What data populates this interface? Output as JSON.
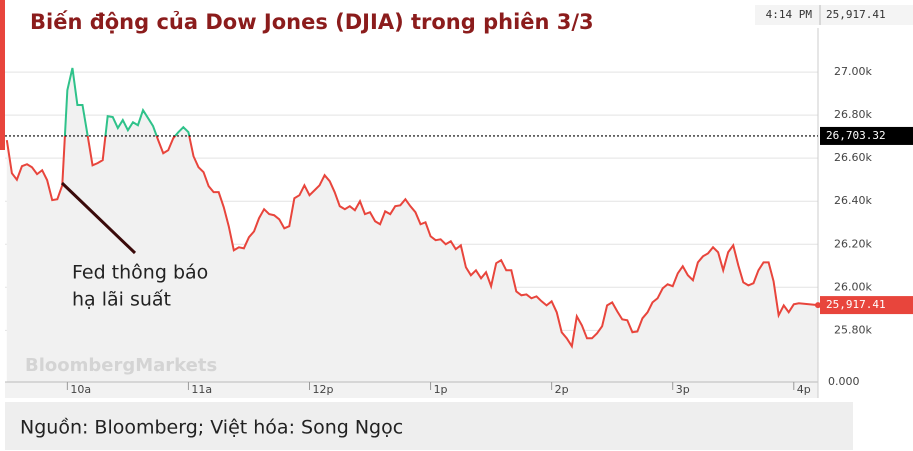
{
  "chart_data": {
    "type": "line",
    "title": "Biến động của Dow Jones (DJIA) trong phiên 3/3",
    "header": {
      "time": "4:14 PM",
      "price": "25,917.41"
    },
    "watermark": "BloombergMarkets",
    "annotation": [
      "Fed thông báo",
      "hạ lãi suất"
    ],
    "source": "Nguồn: Bloomberg; Việt hóa: Song Ngọc",
    "volume_axis_label": "0.000",
    "color": "#e8453c",
    "color_above": "#2fc28a",
    "grid": true,
    "xlim": [
      9.485,
      16.2
    ],
    "ylim": [
      25560,
      27335
    ],
    "xticks": [
      {
        "value": 10,
        "label": "10a"
      },
      {
        "value": 11,
        "label": "11a"
      },
      {
        "value": 12,
        "label": "12p"
      },
      {
        "value": 13,
        "label": "1p"
      },
      {
        "value": 14,
        "label": "2p"
      },
      {
        "value": 15,
        "label": "3p"
      },
      {
        "value": 16,
        "label": "4p"
      }
    ],
    "yticks": [
      {
        "value": 25800,
        "label": "25.80k"
      },
      {
        "value": 26000,
        "label": "26.00k"
      },
      {
        "value": 26200,
        "label": "26.20k"
      },
      {
        "value": 26400,
        "label": "26.40k"
      },
      {
        "value": 26600,
        "label": "26.60k"
      },
      {
        "value": 26800,
        "label": "26.80k"
      },
      {
        "value": 27000,
        "label": "27.00k"
      }
    ],
    "reference_line": {
      "value": 26703.32,
      "label": "26,703.32"
    },
    "last_label": {
      "value": 25917.41,
      "label": "25,917.41"
    },
    "x": [
      9.5,
      9.542,
      9.583,
      9.625,
      9.667,
      9.708,
      9.75,
      9.792,
      9.833,
      9.875,
      9.917,
      9.958,
      10,
      10.042,
      10.083,
      10.125,
      10.167,
      10.208,
      10.25,
      10.292,
      10.333,
      10.375,
      10.417,
      10.458,
      10.5,
      10.542,
      10.583,
      10.625,
      10.667,
      10.708,
      10.75,
      10.792,
      10.833,
      10.875,
      10.917,
      10.958,
      11,
      11.042,
      11.083,
      11.125,
      11.167,
      11.208,
      11.25,
      11.292,
      11.333,
      11.375,
      11.417,
      11.458,
      11.5,
      11.542,
      11.583,
      11.625,
      11.667,
      11.708,
      11.75,
      11.792,
      11.833,
      11.875,
      11.917,
      11.958,
      12,
      12.042,
      12.083,
      12.125,
      12.167,
      12.208,
      12.25,
      12.292,
      12.333,
      12.375,
      12.417,
      12.458,
      12.5,
      12.542,
      12.583,
      12.625,
      12.667,
      12.708,
      12.75,
      12.792,
      12.833,
      12.875,
      12.917,
      12.958,
      13,
      13.042,
      13.083,
      13.125,
      13.167,
      13.208,
      13.25,
      13.292,
      13.333,
      13.375,
      13.417,
      13.458,
      13.5,
      13.542,
      13.583,
      13.625,
      13.667,
      13.708,
      13.75,
      13.792,
      13.833,
      13.875,
      13.917,
      13.958,
      14,
      14.042,
      14.083,
      14.125,
      14.167,
      14.208,
      14.25,
      14.292,
      14.333,
      14.375,
      14.417,
      14.458,
      14.5,
      14.542,
      14.583,
      14.625,
      14.667,
      14.708,
      14.75,
      14.792,
      14.833,
      14.875,
      14.917,
      14.958,
      15,
      15.042,
      15.083,
      15.125,
      15.167,
      15.208,
      15.25,
      15.292,
      15.333,
      15.375,
      15.417,
      15.458,
      15.5,
      15.542,
      15.583,
      15.625,
      15.667,
      15.708,
      15.75,
      15.792,
      15.833,
      15.875,
      15.917,
      15.958,
      16,
      16.042,
      16.2
    ],
    "values": [
      26684,
      26530,
      26500,
      26563,
      26572,
      26558,
      26526,
      26544,
      26498,
      26405,
      26409,
      26474,
      26916,
      27019,
      26847,
      26847,
      26707,
      26567,
      26577,
      26591,
      26795,
      26791,
      26740,
      26777,
      26730,
      26767,
      26753,
      26823,
      26786,
      26749,
      26684,
      26623,
      26637,
      26693,
      26721,
      26744,
      26721,
      26609,
      26558,
      26535,
      26470,
      26442,
      26442,
      26372,
      26284,
      26172,
      26186,
      26181,
      26233,
      26260,
      26321,
      26363,
      26340,
      26335,
      26316,
      26274,
      26284,
      26414,
      26428,
      26474,
      26428,
      26451,
      26474,
      26521,
      26493,
      26442,
      26377,
      26363,
      26377,
      26358,
      26400,
      26340,
      26349,
      26307,
      26293,
      26353,
      26340,
      26377,
      26381,
      26409,
      26377,
      26349,
      26293,
      26302,
      26237,
      26219,
      26223,
      26200,
      26214,
      26177,
      26195,
      26093,
      26056,
      26079,
      26042,
      26070,
      26005,
      26112,
      26126,
      26079,
      26079,
      25981,
      25963,
      25967,
      25949,
      25958,
      25935,
      25916,
      25935,
      25884,
      25791,
      25763,
      25726,
      25865,
      25823,
      25763,
      25763,
      25786,
      25819,
      25916,
      25930,
      25888,
      25851,
      25847,
      25791,
      25795,
      25856,
      25884,
      25930,
      25949,
      25995,
      26014,
      26005,
      26065,
      26098,
      26056,
      26033,
      26116,
      26144,
      26158,
      26186,
      26163,
      26079,
      26163,
      26195,
      26102,
      26023,
      26009,
      26019,
      26079,
      26116,
      26116,
      26028,
      25870,
      25916,
      25884,
      25921,
      25926,
      25917.41
    ]
  }
}
